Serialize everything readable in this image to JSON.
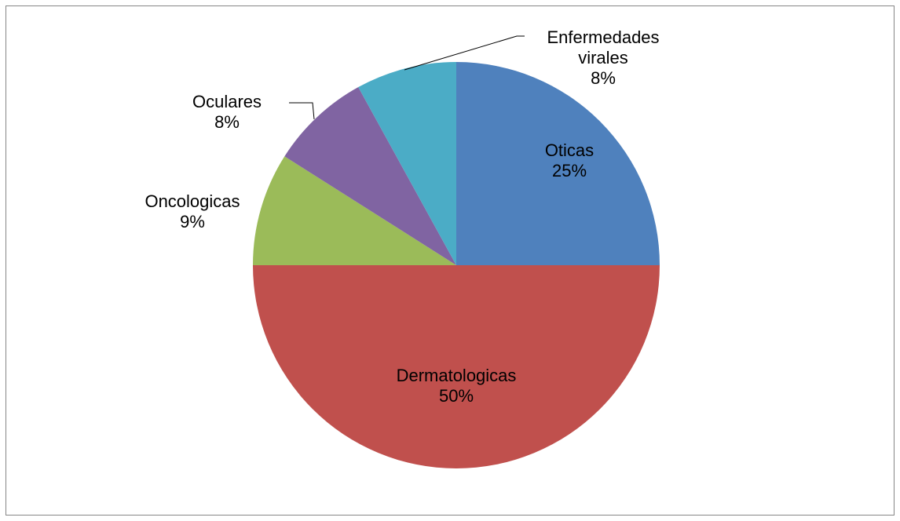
{
  "chart_data": {
    "type": "pie",
    "categories": [
      "Oticas",
      "Dermatologicas",
      "Oncologicas",
      "Oculares",
      "Enfermedades virales"
    ],
    "values": [
      25,
      50,
      9,
      8,
      8
    ],
    "value_labels": [
      "25%",
      "50%",
      "9%",
      "8%",
      "8%"
    ],
    "colors": [
      "#4f81bd",
      "#c0504d",
      "#9bbb59",
      "#8064a2",
      "#4bacc6"
    ]
  }
}
